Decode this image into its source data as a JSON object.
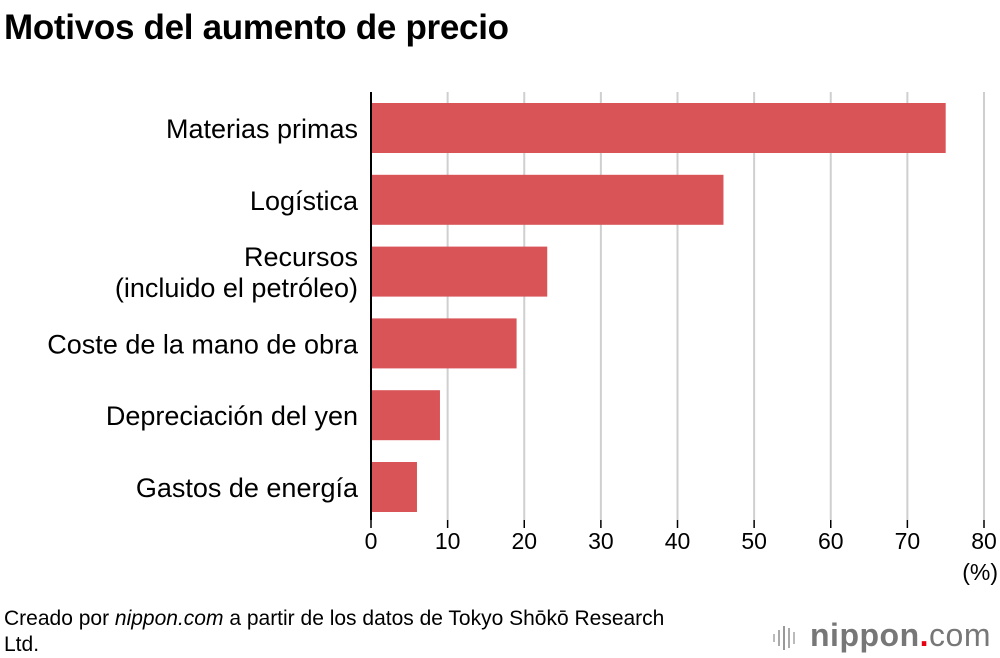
{
  "title": "Motivos del aumento de precio",
  "chart_data": {
    "type": "bar",
    "orientation": "horizontal",
    "title": "Motivos del aumento de precio",
    "categories": [
      "Materias primas",
      "Logística",
      "Recursos\n(incluido el petróleo)",
      "Coste de la mano de obra",
      "Depreciación del yen",
      "Gastos de energía"
    ],
    "values": [
      75,
      46,
      23,
      19,
      9,
      6
    ],
    "xlabel": "(%)",
    "xlim": [
      0,
      80
    ],
    "xticks": [
      0,
      10,
      20,
      30,
      40,
      50,
      60,
      70,
      80
    ],
    "grid": true,
    "bar_color": "#d95457"
  },
  "source": {
    "prefix": "Creado por ",
    "site": "nippon.com",
    "suffix": " a partir de los datos de Tokyo Shōkō Research Ltd."
  },
  "logo": {
    "name": "nippon",
    "dot": ".",
    "tld": "com"
  }
}
